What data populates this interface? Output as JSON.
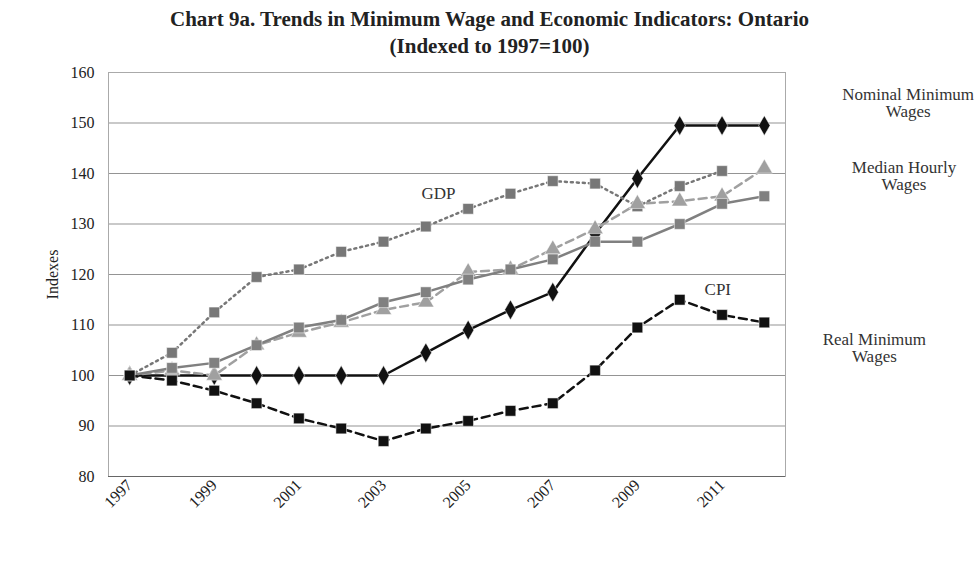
{
  "chart_data": {
    "type": "line",
    "title": "Chart 9a. Trends in Minimum Wage and Economic Indicators: Ontario  (Indexed to 1997=100)",
    "y_label": "Indexes",
    "x": [
      1997,
      1998,
      1999,
      2000,
      2001,
      2002,
      2003,
      2004,
      2005,
      2006,
      2007,
      2008,
      2009,
      2010,
      2011,
      2012
    ],
    "xlim": [
      1996.5,
      2012.5
    ],
    "xticks": [
      1997,
      1999,
      2001,
      2003,
      2005,
      2007,
      2009,
      2011
    ],
    "ylim": [
      80,
      160
    ],
    "yticks": [
      80,
      90,
      100,
      110,
      120,
      130,
      140,
      150,
      160
    ],
    "grid": true,
    "series": [
      {
        "name": "Nominal Minimum Wages",
        "color": "#111111",
        "marker": "diamond",
        "line_style": "solid",
        "values": [
          100,
          100,
          100,
          100,
          100,
          100,
          100,
          104.5,
          109,
          113,
          116.5,
          128,
          139,
          149.5,
          149.5,
          149.5
        ]
      },
      {
        "name": "GDP",
        "color": "#777777",
        "marker": "square",
        "line_style": "dotted",
        "values": [
          100,
          104.5,
          112.5,
          119.5,
          121,
          124.5,
          126.5,
          129.5,
          133,
          136,
          138.5,
          138,
          133.5,
          137.5,
          140.5,
          null
        ]
      },
      {
        "name": "Median Hourly Wages",
        "color": "#a0a0a0",
        "marker": "triangle",
        "line_style": "dashed",
        "values": [
          100,
          101,
          100,
          106,
          108.5,
          110.5,
          113,
          114.5,
          120.5,
          121,
          125,
          129,
          134,
          134.5,
          135.5,
          141
        ]
      },
      {
        "name": "CPI",
        "color": "#808080",
        "marker": "square",
        "line_style": "solid",
        "values": [
          100,
          101.5,
          102.5,
          106,
          109.5,
          111,
          114.5,
          116.5,
          119,
          121,
          123,
          126.5,
          126.5,
          130,
          134,
          135.5
        ]
      },
      {
        "name": "Real Minimum Wages",
        "color": "#111111",
        "marker": "square",
        "line_style": "dashed",
        "values": [
          100,
          99,
          97,
          94.5,
          91.5,
          89.5,
          87,
          89.5,
          91,
          93,
          94.5,
          101,
          109.5,
          115,
          112,
          110.5
        ]
      }
    ]
  }
}
